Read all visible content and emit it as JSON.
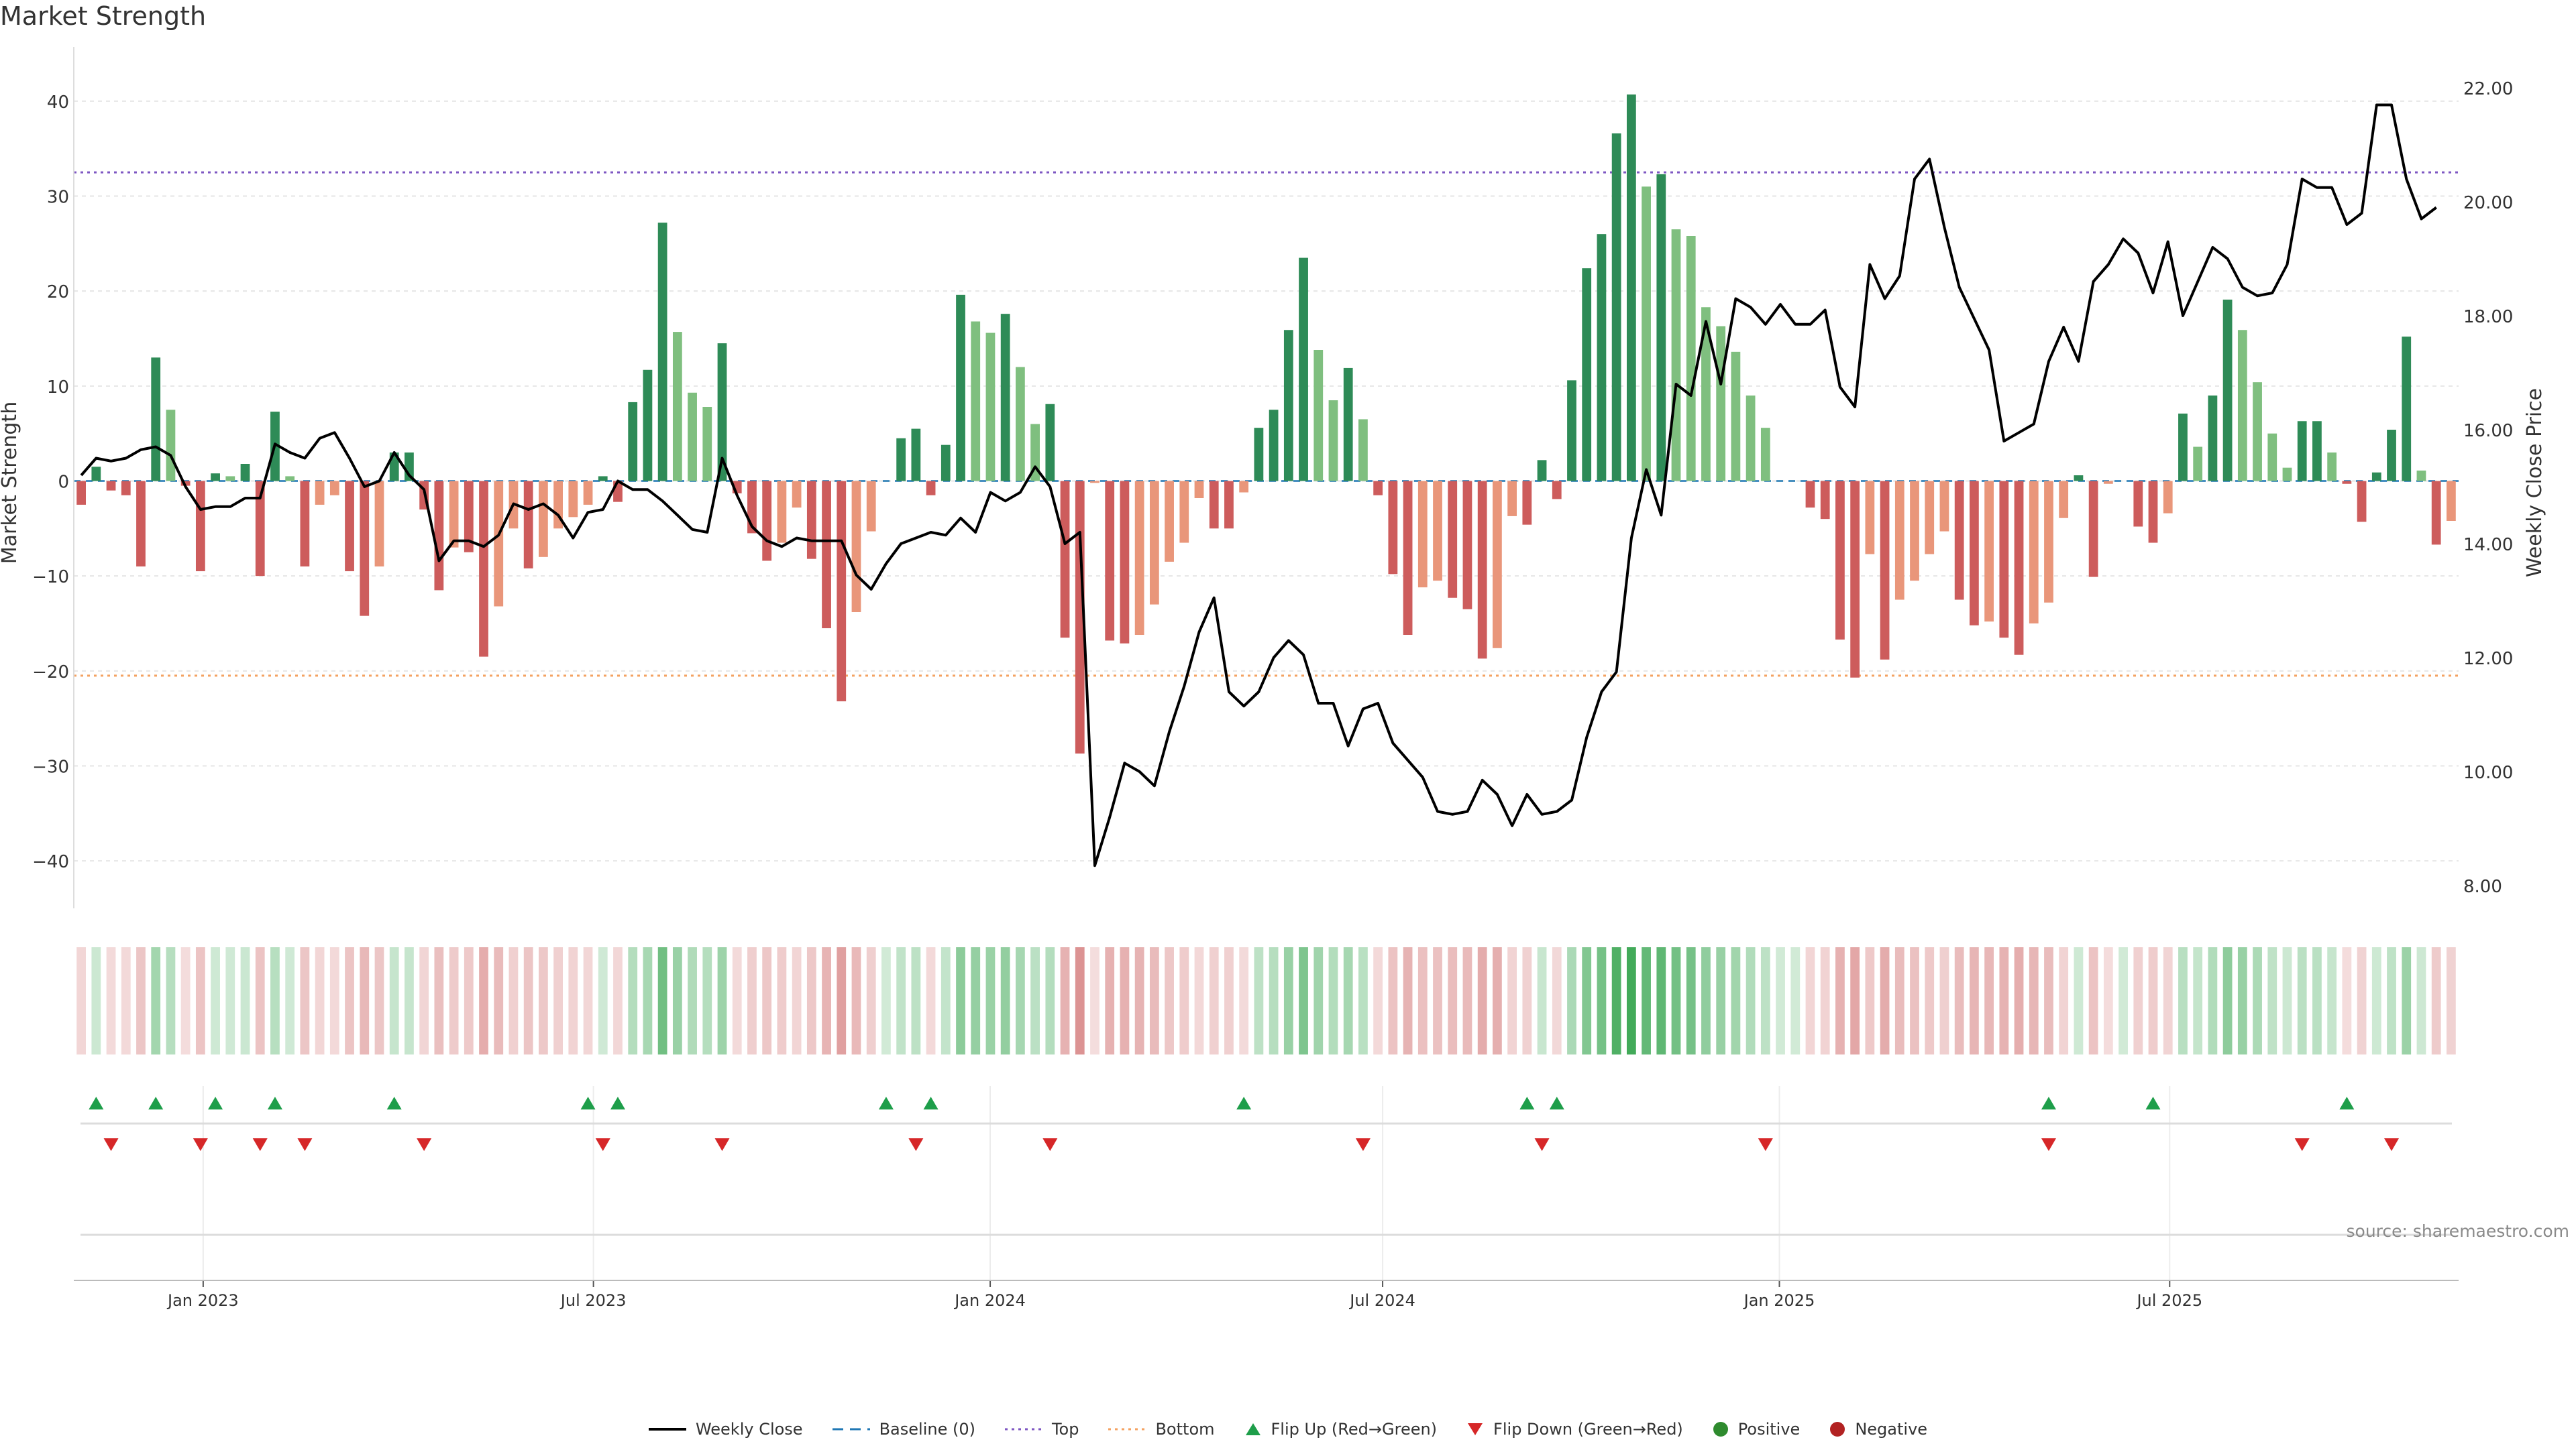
{
  "title": "Market Strength",
  "source": "source: sharemaestro.com",
  "legend": [
    {
      "key": "close",
      "label": "Weekly Close",
      "color": "#000000"
    },
    {
      "key": "baseline",
      "label": "Baseline (0)",
      "color": "#1f77b4"
    },
    {
      "key": "top",
      "label": "Top",
      "color": "#7e57c2"
    },
    {
      "key": "bottom",
      "label": "Bottom",
      "color": "#f4a261"
    },
    {
      "key": "flipup",
      "label": "Flip Up (Red→Green)",
      "color": "#1e9e4a"
    },
    {
      "key": "flipdown",
      "label": "Flip Down (Green→Red)",
      "color": "#d62728"
    },
    {
      "key": "positive",
      "label": "Positive",
      "color": "#2e8b2e"
    },
    {
      "key": "negative",
      "label": "Negative",
      "color": "#b22222"
    }
  ],
  "chart_data": {
    "type": "bar",
    "title": "Market Strength",
    "ylabel": "Market Strength",
    "y2label": "Weekly Close Price",
    "ylim": [
      -45,
      45
    ],
    "y2lim": [
      7.6,
      22.6
    ],
    "yticks": [
      "-40",
      "-30",
      "-20",
      "-10",
      "0",
      "10",
      "20",
      "30",
      "40"
    ],
    "y2ticks": [
      "8.00",
      "10.00",
      "12.00",
      "14.00",
      "16.00",
      "18.00",
      "20.00",
      "22.00"
    ],
    "x_start": "2022-11-02",
    "x_end": "2025-11-12",
    "x_ticks": [
      {
        "date": "2023-01-01",
        "label": "Jan 2023"
      },
      {
        "date": "2023-07-01",
        "label": "Jul 2023"
      },
      {
        "date": "2024-01-01",
        "label": "Jan 2024"
      },
      {
        "date": "2024-07-01",
        "label": "Jul 2024"
      },
      {
        "date": "2025-01-01",
        "label": "Jan 2025"
      },
      {
        "date": "2025-07-01",
        "label": "Jul 2025"
      }
    ],
    "top_line": 32.5,
    "bottom_line": -20.5,
    "baseline": 0,
    "strength": [
      -2.5,
      1.5,
      -1,
      -1.5,
      -9,
      13,
      7.5,
      -0.5,
      -9.5,
      0.8,
      0.5,
      1.8,
      -10,
      7.3,
      0.5,
      -9,
      -2.5,
      -1.5,
      -9.5,
      -14.2,
      -9,
      3,
      3,
      -3,
      -11.5,
      -7,
      -7.5,
      -18.5,
      -13.2,
      -5,
      -9.2,
      -8,
      -5,
      -3.8,
      -2.5,
      0.5,
      -2.2,
      8.3,
      11.7,
      27.2,
      15.7,
      9.3,
      7.8,
      14.5,
      -1.3,
      -5.5,
      -8.4,
      -6.5,
      -2.8,
      -8.2,
      -15.5,
      -23.2,
      -13.8,
      -5.3,
      0,
      4.5,
      5.5,
      -1.5,
      3.8,
      19.6,
      16.8,
      15.6,
      17.6,
      12,
      6,
      8.1,
      -16.5,
      -28.7,
      -0.2,
      -16.8,
      -17.1,
      -16.2,
      -13,
      -8.5,
      -6.5,
      -1.8,
      -5,
      -5,
      -1.2,
      5.6,
      7.5,
      15.9,
      23.5,
      13.8,
      8.5,
      11.9,
      6.5,
      -1.5,
      -9.8,
      -16.2,
      -11.2,
      -10.5,
      -12.3,
      -13.5,
      -18.7,
      -17.6,
      -3.7,
      -4.6,
      2.2,
      -1.9,
      10.6,
      22.4,
      26,
      36.6,
      40.7,
      31,
      32.3,
      26.5,
      25.8,
      18.3,
      16.3,
      13.6,
      9,
      5.6,
      0,
      0,
      -2.8,
      -4,
      -16.7,
      -20.7,
      -7.7,
      -18.8,
      -12.5,
      -10.5,
      -7.7,
      -5.3,
      -12.5,
      -15.2,
      -14.8,
      -16.5,
      -18.3,
      -15,
      -12.8,
      -3.9,
      0.6,
      -10.1,
      -0.3,
      0,
      -4.8,
      -6.5,
      -3.4,
      7.1,
      3.6,
      9,
      19.1,
      15.9,
      10.4,
      5,
      1.4,
      6.3,
      6.3,
      3,
      -0.3,
      -4.3,
      0.9,
      5.4,
      15.2,
      1.1,
      -6.7,
      -4.2
    ],
    "close": [
      15.2,
      15.5,
      15.45,
      15.5,
      15.65,
      15.7,
      15.55,
      15.0,
      14.6,
      14.65,
      14.65,
      14.8,
      14.8,
      15.75,
      15.6,
      15.5,
      15.85,
      15.95,
      15.5,
      15.0,
      15.1,
      15.6,
      15.2,
      14.95,
      13.7,
      14.05,
      14.05,
      13.95,
      14.15,
      14.7,
      14.6,
      14.7,
      14.5,
      14.1,
      14.55,
      14.6,
      15.1,
      14.95,
      14.95,
      14.75,
      14.5,
      14.25,
      14.2,
      15.5,
      14.85,
      14.3,
      14.05,
      13.95,
      14.1,
      14.05,
      14.05,
      14.05,
      13.45,
      13.2,
      13.65,
      14.0,
      14.1,
      14.2,
      14.15,
      14.45,
      14.2,
      14.9,
      14.75,
      14.9,
      15.35,
      15.0,
      14.0,
      14.2,
      8.35,
      9.2,
      10.15,
      10.0,
      9.75,
      10.7,
      11.5,
      12.45,
      13.05,
      11.4,
      11.15,
      11.4,
      12.0,
      12.3,
      12.05,
      11.2,
      11.2,
      10.45,
      11.1,
      11.2,
      10.5,
      10.2,
      9.9,
      9.3,
      9.25,
      9.3,
      9.85,
      9.6,
      9.05,
      9.6,
      9.25,
      9.3,
      9.5,
      10.6,
      11.4,
      11.75,
      14.1,
      15.3,
      14.5,
      16.8,
      16.6,
      17.9,
      16.8,
      18.3,
      18.15,
      17.85,
      18.2,
      17.85,
      17.85,
      18.1,
      16.75,
      16.4,
      18.9,
      18.3,
      18.7,
      20.4,
      20.75,
      19.55,
      18.5,
      17.95,
      17.4,
      15.8,
      15.95,
      16.1,
      17.2,
      17.8,
      17.2,
      18.6,
      18.9,
      19.35,
      19.1,
      18.4,
      19.3,
      18.0,
      18.6,
      19.2,
      19.0,
      18.5,
      18.35,
      18.4,
      18.9,
      20.4,
      20.25,
      20.25,
      19.6,
      19.8,
      21.7,
      21.7,
      20.4,
      19.7,
      19.9
    ],
    "flip_up": [
      1,
      5,
      9,
      13,
      21,
      34,
      36,
      54,
      57,
      78,
      97,
      99,
      132,
      139,
      152
    ],
    "flip_down": [
      2,
      8,
      12,
      15,
      23,
      35,
      43,
      56,
      65,
      86,
      98,
      113,
      132,
      149,
      155
    ]
  }
}
